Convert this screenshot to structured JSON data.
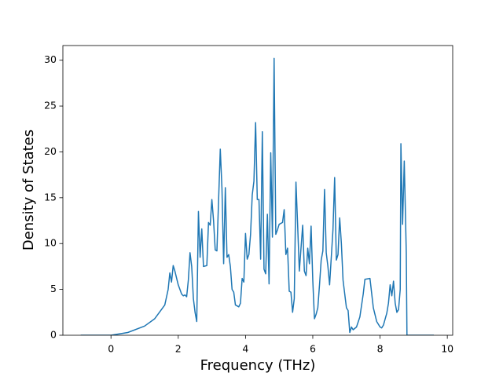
{
  "chart_data": {
    "type": "line",
    "xlabel": "Frequency (THz)",
    "ylabel": "Density of States",
    "color": "#1f77b4",
    "xlim": [
      -1.43,
      10.16
    ],
    "ylim": [
      0,
      31.6
    ],
    "xticks": [
      0,
      2,
      4,
      6,
      8,
      10
    ],
    "yticks": [
      0,
      5,
      10,
      15,
      20,
      25,
      30
    ],
    "grid": false,
    "x": [
      -0.9,
      0,
      0.5,
      1.0,
      1.3,
      1.5,
      1.6,
      1.7,
      1.75,
      1.8,
      1.85,
      1.9,
      2.0,
      2.1,
      2.15,
      2.2,
      2.25,
      2.3,
      2.35,
      2.4,
      2.45,
      2.5,
      2.55,
      2.6,
      2.65,
      2.7,
      2.75,
      2.85,
      2.9,
      2.95,
      3.0,
      3.05,
      3.1,
      3.15,
      3.25,
      3.3,
      3.35,
      3.4,
      3.45,
      3.5,
      3.55,
      3.6,
      3.65,
      3.7,
      3.8,
      3.85,
      3.9,
      3.95,
      4.0,
      4.05,
      4.1,
      4.15,
      4.2,
      4.25,
      4.3,
      4.35,
      4.4,
      4.45,
      4.5,
      4.55,
      4.6,
      4.65,
      4.7,
      4.75,
      4.8,
      4.85,
      4.9,
      4.95,
      5.0,
      5.05,
      5.1,
      5.15,
      5.2,
      5.25,
      5.3,
      5.35,
      5.4,
      5.45,
      5.5,
      5.55,
      5.6,
      5.7,
      5.75,
      5.8,
      5.85,
      5.9,
      5.95,
      6.0,
      6.05,
      6.1,
      6.15,
      6.2,
      6.25,
      6.3,
      6.35,
      6.4,
      6.45,
      6.5,
      6.55,
      6.6,
      6.65,
      6.7,
      6.75,
      6.8,
      6.85,
      6.9,
      6.95,
      7.0,
      7.05,
      7.1,
      7.15,
      7.2,
      7.3,
      7.4,
      7.5,
      7.55,
      7.7,
      7.8,
      7.9,
      8.0,
      8.05,
      8.1,
      8.2,
      8.25,
      8.3,
      8.35,
      8.4,
      8.45,
      8.5,
      8.55,
      8.6,
      8.62,
      8.67,
      8.72,
      8.78,
      8.8,
      9.6
    ],
    "values": [
      0,
      0,
      0.3,
      1.0,
      1.8,
      2.8,
      3.3,
      5.0,
      6.8,
      5.8,
      7.6,
      7.0,
      5.5,
      4.5,
      4.3,
      4.4,
      4.2,
      6.0,
      9.0,
      7.5,
      4.0,
      2.5,
      1.5,
      13.5,
      8.5,
      11.6,
      7.5,
      7.6,
      12.3,
      12.0,
      14.8,
      12.5,
      9.3,
      9.2,
      20.3,
      16.0,
      7.8,
      16.1,
      8.5,
      8.8,
      7.5,
      5.0,
      4.7,
      3.3,
      3.1,
      3.5,
      6.2,
      5.8,
      11.1,
      8.3,
      8.8,
      11,
      15.3,
      16.8,
      23.2,
      14.8,
      14.8,
      8.3,
      22.2,
      7.2,
      6.7,
      13.2,
      5.6,
      19.9,
      10.7,
      30.2,
      11.0,
      11.5,
      12.1,
      12.2,
      12.3,
      13.7,
      8.8,
      9.5,
      4.8,
      4.7,
      2.5,
      4.0,
      16.7,
      12,
      7.0,
      12.0,
      7.0,
      6.5,
      9.5,
      7.8,
      11.9,
      6.0,
      1.8,
      2.3,
      3.0,
      5.5,
      8.2,
      9.2,
      15.9,
      9.0,
      7.5,
      5.5,
      8.5,
      11.5,
      17.2,
      8.2,
      8.8,
      12.8,
      10,
      6,
      4.5,
      3.0,
      2.7,
      0.3,
      0.9,
      0.6,
      0.9,
      2.0,
      4.5,
      6.1,
      6.2,
      3.0,
      1.5,
      0.9,
      0.8,
      1.1,
      2.4,
      3.5,
      5.5,
      4.3,
      5.9,
      3.5,
      2.5,
      2.8,
      5.0,
      20.9,
      12.1,
      19.0,
      9.0,
      0,
      0
    ]
  }
}
